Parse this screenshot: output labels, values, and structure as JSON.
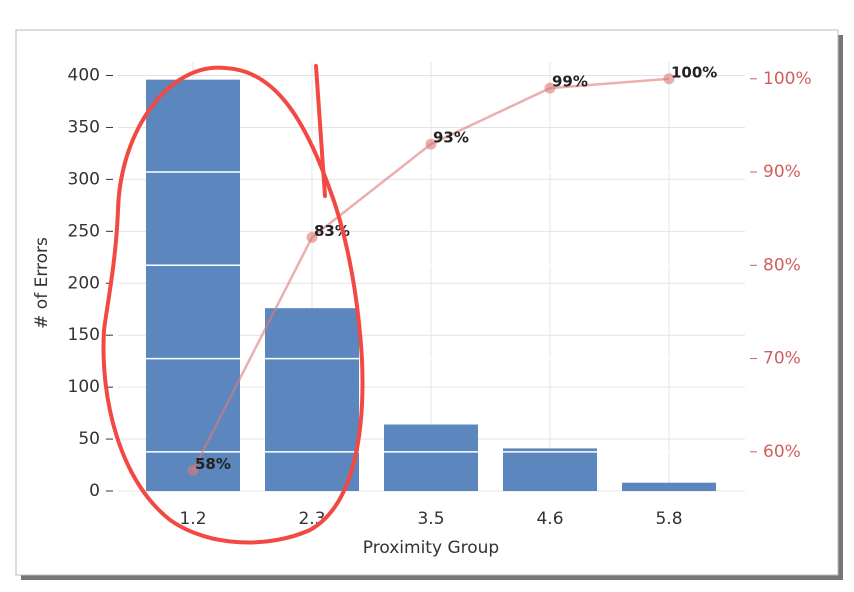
{
  "chart_data": {
    "type": "bar",
    "x_label": "Proximity Group",
    "y_label": "# of Errors",
    "categories": [
      "1.2",
      "2.3",
      "3.5",
      "4.6",
      "5.8"
    ],
    "series": [
      {
        "type": "bar",
        "color": "#5b87be",
        "values": [
          396,
          176,
          64,
          41,
          8
        ]
      },
      {
        "type": "line",
        "axis": "y2",
        "color": "#e07a7a",
        "values": [
          58,
          83,
          93,
          99,
          100
        ],
        "value_labels": [
          "58%",
          "83%",
          "93%",
          "99%",
          "100%"
        ]
      }
    ],
    "ylim": [
      0,
      413
    ],
    "yticks": [
      0,
      50,
      100,
      150,
      200,
      250,
      300,
      350,
      400
    ],
    "y2lim": [
      55.8,
      101.8
    ],
    "y2ticks": [
      {
        "value": 60,
        "label": "60%"
      },
      {
        "value": 70,
        "label": "70%"
      },
      {
        "value": 80,
        "label": "80%"
      },
      {
        "value": 90,
        "label": "90%"
      },
      {
        "value": 100,
        "label": "100%"
      }
    ],
    "y2_color": "#d0605e",
    "grid": true
  }
}
